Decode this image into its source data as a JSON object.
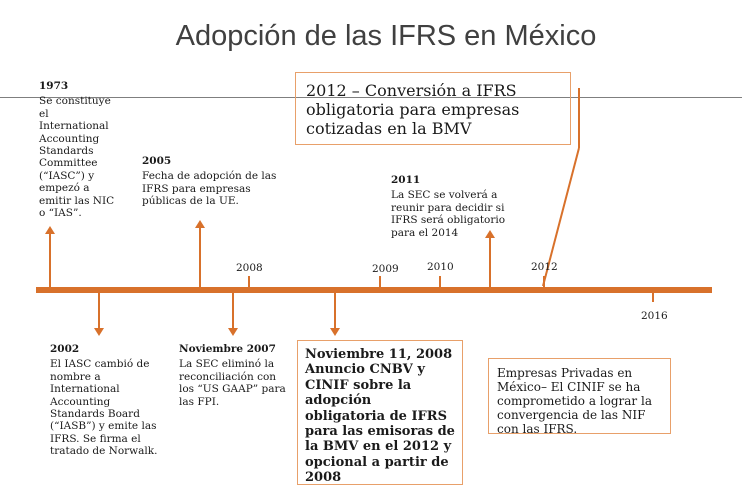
{
  "title": "Adopción de las IFRS en México",
  "accent_color": "#d8712b",
  "events": {
    "e1973": {
      "year": "1973",
      "text": "Se constituye el International Accounting Standards Committee (“IASC”) y empezó a emitir las NIC o “IAS”."
    },
    "e2005": {
      "year": "2005",
      "text": "Fecha de adopción de las IFRS para empresas públicas de la UE."
    },
    "e2011": {
      "year": "2011",
      "text": "La SEC se volverá a reunir para decidir si IFRS será obligatorio para el 2014"
    },
    "e2002": {
      "year": "2002",
      "text": "El IASC cambió de nombre a International Accounting Standards Board (“IASB”) y emite las IFRS. Se firma el tratado de Norwalk."
    },
    "e2007": {
      "year": "Noviembre 2007",
      "text": "La SEC eliminó la reconciliación con los “US GAAP” para las FPI."
    }
  },
  "callouts": {
    "conversion_2012": "2012 – Conversión a IFRS obligatoria para empresas cotizadas en la BMV",
    "cnbv_2008": "Noviembre 11, 2008 Anuncio CNBV y CINIF sobre la adopción obligatoria de IFRS para las emisoras de la BMV en el 2012 y opcional a partir de 2008",
    "privadas": "Empresas Privadas en México– El CINIF se ha comprometido a lograr la convergencia de las NIF con las IFRS."
  },
  "axis_years": {
    "y2008": "2008",
    "y2009": "2009",
    "y2010": "2010",
    "y2012": "2012",
    "y2016": "2016"
  }
}
